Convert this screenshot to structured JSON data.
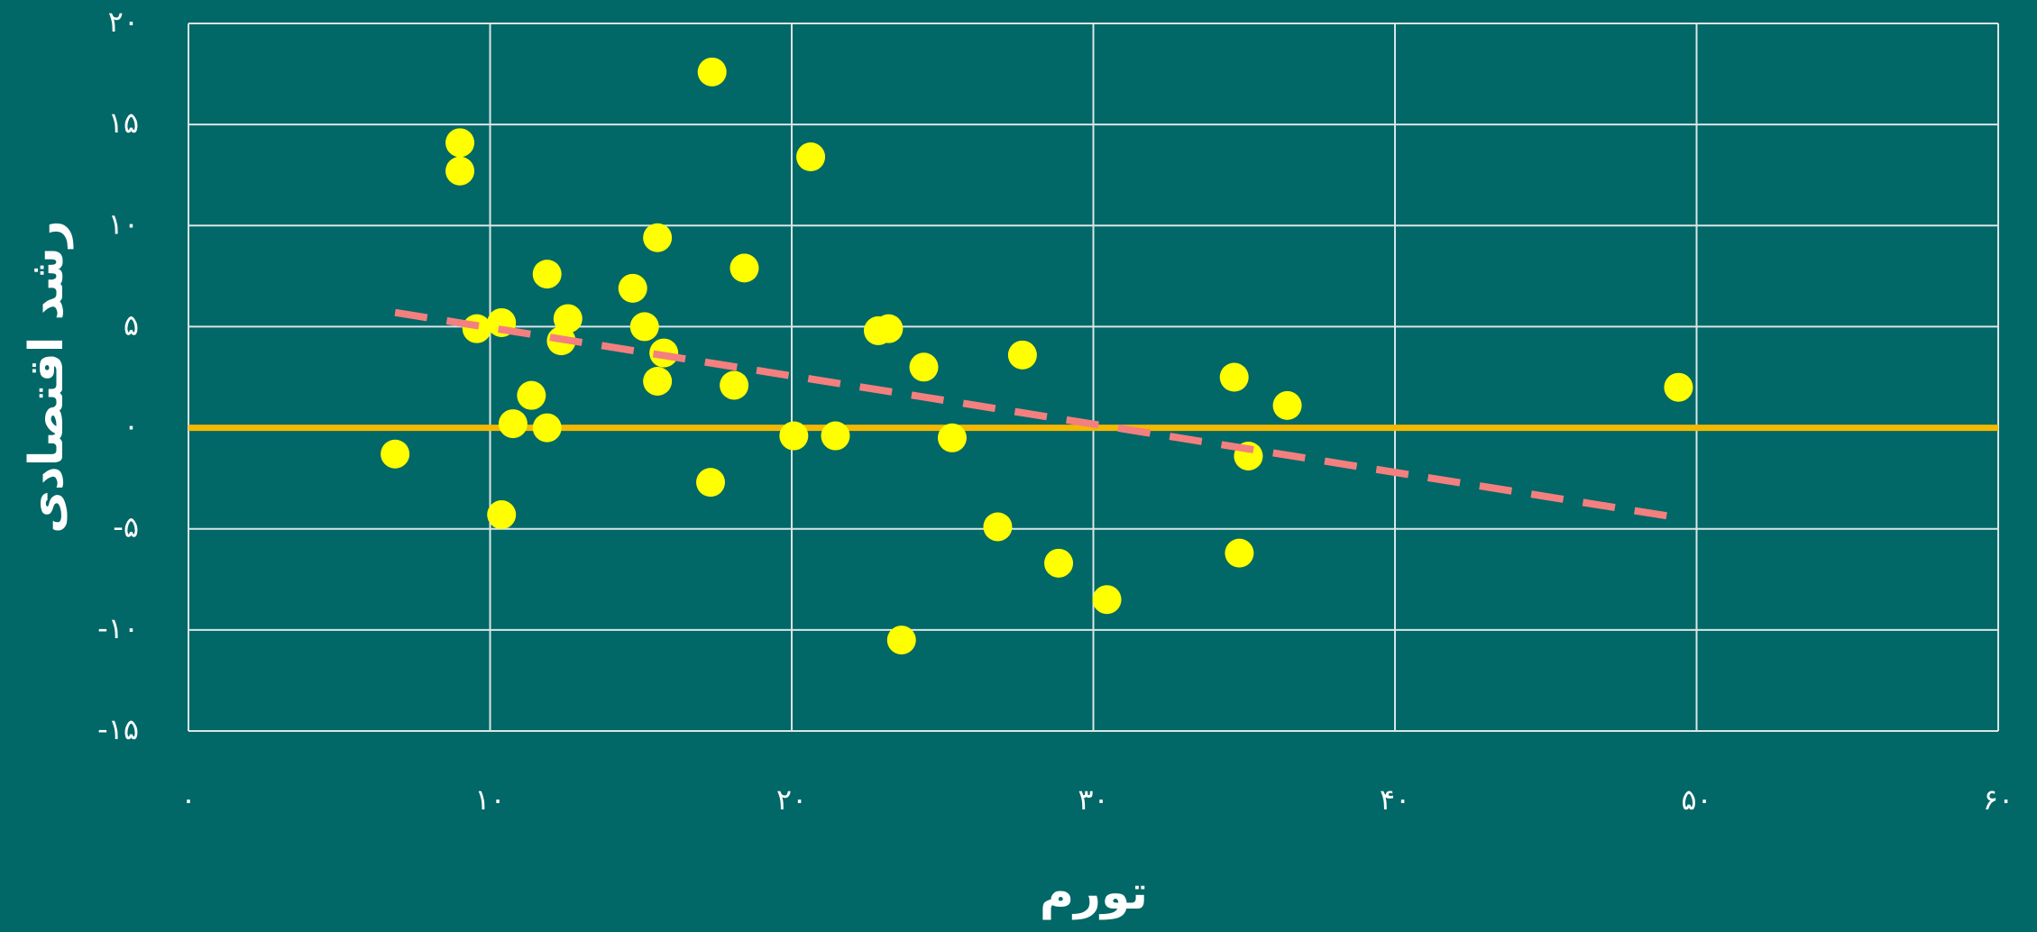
{
  "chart_data": {
    "type": "scatter",
    "xlabel": "تورم",
    "ylabel": "رشد اقتصادی",
    "x": [
      6.85,
      9.0,
      9.0,
      9.56,
      10.38,
      10.38,
      10.76,
      11.37,
      11.89,
      11.89,
      12.36,
      12.58,
      14.73,
      15.12,
      15.55,
      15.76,
      15.55,
      17.31,
      17.36,
      18.09,
      18.43,
      20.07,
      20.63,
      21.45,
      22.87,
      23.21,
      23.64,
      24.38,
      25.32,
      26.83,
      27.65,
      28.85,
      30.45,
      34.67,
      34.84,
      35.14,
      36.43,
      49.4
    ],
    "y": [
      -1.3,
      14.1,
      12.7,
      4.9,
      5.2,
      -4.3,
      0.2,
      1.6,
      7.6,
      0.0,
      4.3,
      5.4,
      6.9,
      5.0,
      9.4,
      3.7,
      2.3,
      -2.7,
      17.6,
      2.1,
      7.9,
      -0.4,
      13.4,
      -0.4,
      4.8,
      4.9,
      -10.5,
      3.0,
      -0.5,
      -4.9,
      3.6,
      -6.7,
      -8.5,
      2.5,
      -6.2,
      -1.4,
      1.1,
      2.0
    ],
    "color": "#ffff00",
    "trendline": {
      "x": [
        6.85,
        49.2
      ],
      "y": [
        5.7,
        -4.4
      ],
      "color": "#f47f7f"
    },
    "reference_line": {
      "y": 0,
      "color": "#f5b800"
    },
    "xlim": [
      0,
      60
    ],
    "ylim": [
      -15,
      20
    ],
    "xticks": [
      {
        "value": 0,
        "label": "۰"
      },
      {
        "value": 10,
        "label": "۱۰"
      },
      {
        "value": 20,
        "label": "۲۰"
      },
      {
        "value": 30,
        "label": "۳۰"
      },
      {
        "value": 40,
        "label": "۴۰"
      },
      {
        "value": 50,
        "label": "۵۰"
      },
      {
        "value": 60,
        "label": "۶۰"
      }
    ],
    "yticks": [
      {
        "value": -15,
        "label": "-۱۵"
      },
      {
        "value": -10,
        "label": "-۱۰"
      },
      {
        "value": -5,
        "label": "-۵"
      },
      {
        "value": 0,
        "label": "۰"
      },
      {
        "value": 5,
        "label": "۵"
      },
      {
        "value": 10,
        "label": "۱۰"
      },
      {
        "value": 15,
        "label": "۱۵"
      },
      {
        "value": 20,
        "label": "۲۰"
      }
    ],
    "grid": true,
    "background": "#026767"
  }
}
